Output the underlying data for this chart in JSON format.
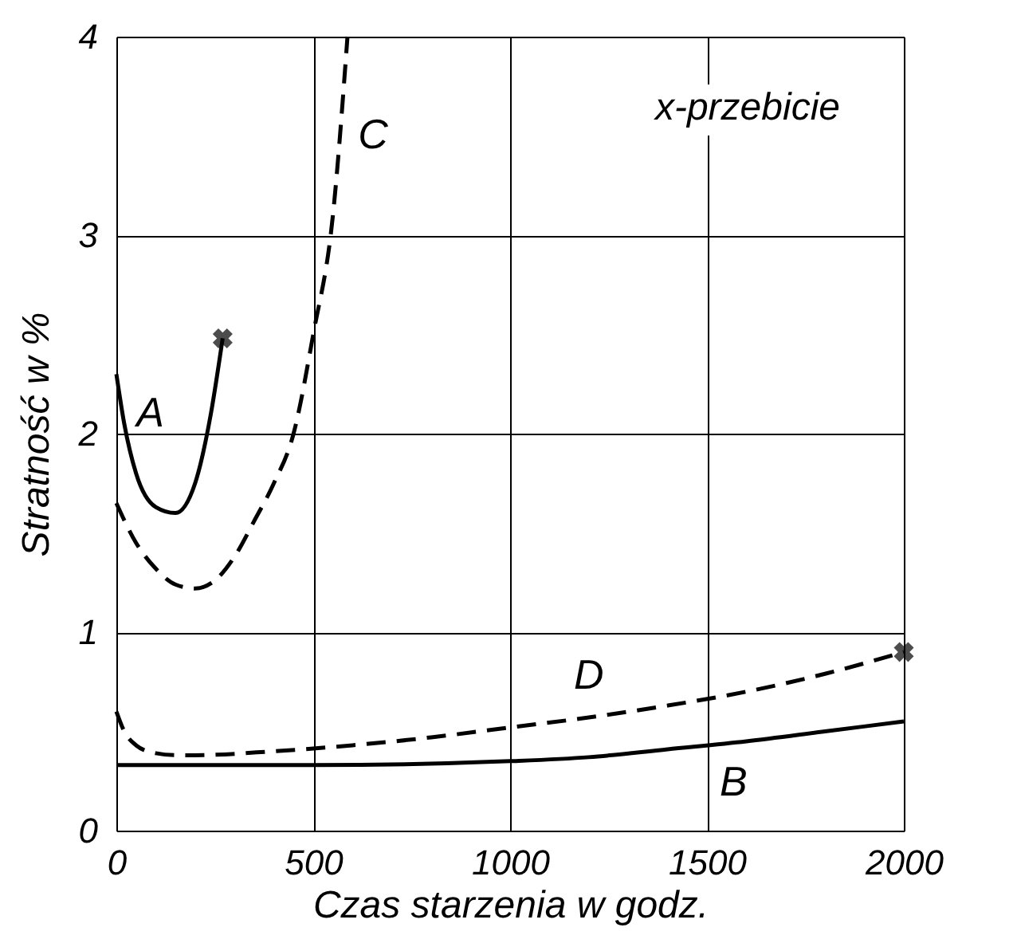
{
  "chart_data": {
    "type": "line",
    "xlabel": "Czas starzenia  w  godz.",
    "ylabel": "Stratność  w   %",
    "xlim": [
      0,
      2000
    ],
    "ylim": [
      0,
      4
    ],
    "xticks": [
      0,
      500,
      1000,
      1500,
      2000
    ],
    "yticks": [
      0,
      1,
      2,
      3,
      4
    ],
    "grid": true,
    "series": [
      {
        "name": "A",
        "color": "#000000",
        "line_style": "solid",
        "x": [
          0,
          20,
          50,
          100,
          150,
          200,
          240,
          270
        ],
        "values": [
          2.3,
          2.05,
          1.8,
          1.63,
          1.6,
          1.75,
          2.1,
          2.48
        ]
      },
      {
        "name": "C",
        "color": "#000000",
        "line_style": "dashed",
        "x": [
          0,
          50,
          100,
          150,
          200,
          250,
          300,
          350,
          400,
          450,
          500,
          550,
          587
        ],
        "values": [
          1.65,
          1.45,
          1.32,
          1.24,
          1.22,
          1.26,
          1.38,
          1.56,
          1.75,
          2.0,
          2.5,
          3.1,
          4.0
        ]
      },
      {
        "name": "D",
        "color": "#000000",
        "line_style": "dashed",
        "x": [
          0,
          20,
          50,
          100,
          150,
          200,
          400,
          600,
          800,
          1000,
          1200,
          1400,
          1600,
          1800,
          2000
        ],
        "values": [
          0.6,
          0.5,
          0.43,
          0.39,
          0.38,
          0.38,
          0.4,
          0.43,
          0.47,
          0.52,
          0.57,
          0.63,
          0.7,
          0.79,
          0.9
        ]
      },
      {
        "name": "B",
        "color": "#000000",
        "line_style": "solid",
        "x": [
          0,
          500,
          1000,
          1200,
          1400,
          1600,
          1800,
          2000
        ],
        "values": [
          0.33,
          0.33,
          0.35,
          0.37,
          0.41,
          0.45,
          0.5,
          0.55
        ]
      },
      {
        "type": "scatter",
        "marker": "cross",
        "color": "#000000",
        "x": [
          270,
          2000
        ],
        "values": [
          2.48,
          0.9
        ]
      }
    ],
    "annotations": [
      "x-przebicie"
    ]
  }
}
